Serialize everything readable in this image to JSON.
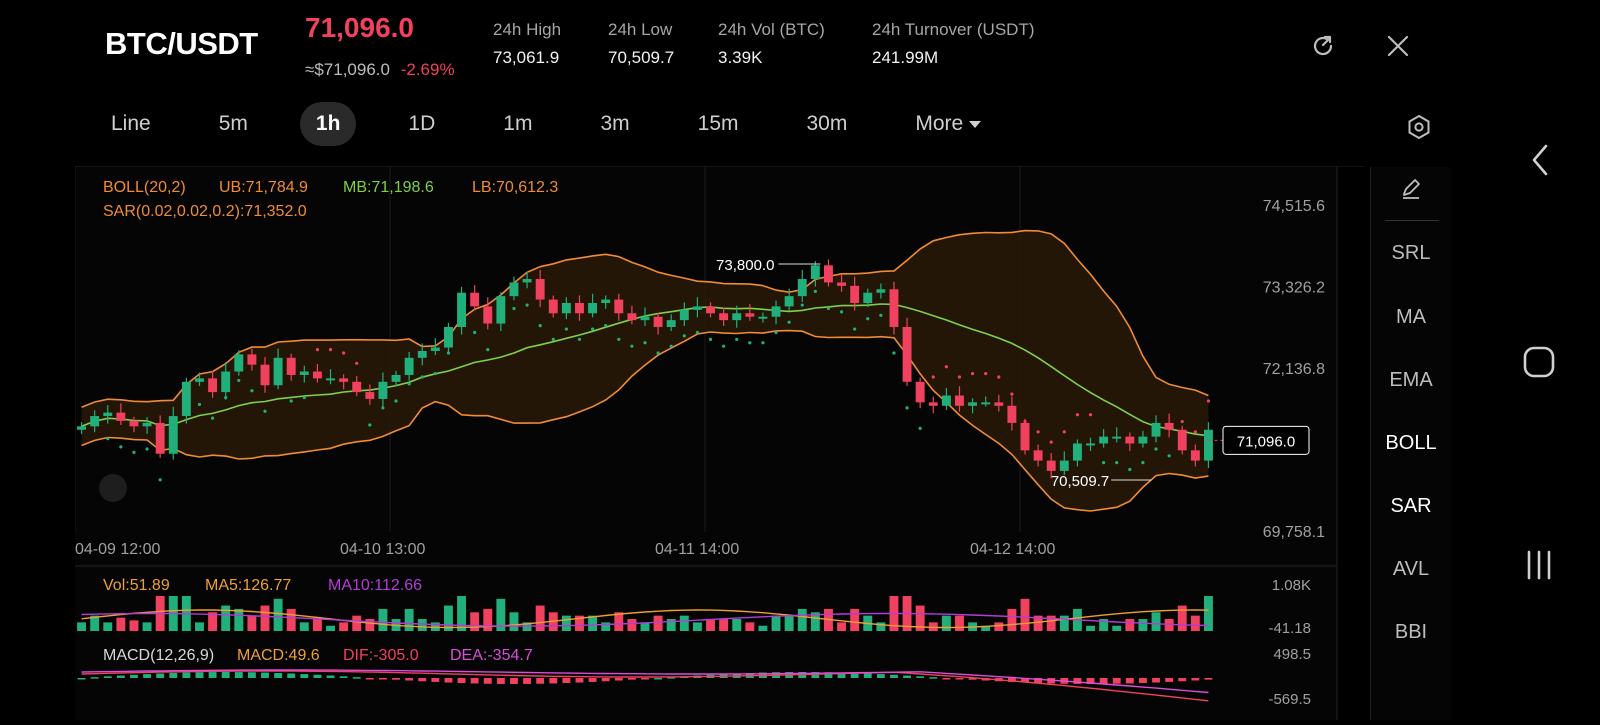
{
  "header": {
    "pair": "BTC/USDT",
    "last_price": "71,096.0",
    "usd_approx": "≈$71,096.0",
    "change_pct": "-2.69%",
    "stats": [
      {
        "label": "24h   High",
        "value": "73,061.9"
      },
      {
        "label": "24h   Low",
        "value": "70,509.7"
      },
      {
        "label": "24h   Vol (BTC)",
        "value": "3.39K"
      },
      {
        "label": "24h   Turnover (USDT)",
        "value": "241.99M"
      }
    ]
  },
  "intervals": [
    "Line",
    "5m",
    "1h",
    "1D",
    "1m",
    "3m",
    "15m",
    "30m"
  ],
  "active_interval": "1h",
  "more_label": "More",
  "indicator_panel": [
    "SRL",
    "MA",
    "EMA",
    "BOLL",
    "SAR",
    "AVL",
    "BBI"
  ],
  "active_indicators": [
    "BOLL",
    "SAR"
  ],
  "colors": {
    "up": "#21b07b",
    "down": "#f0415e",
    "boll_band": "#f08c35",
    "boll_mid": "#7fd14a",
    "sar": "#f0415e",
    "ma5": "#f0a030",
    "ma10": "#b43cd8"
  },
  "chart_data": {
    "type": "candlestick",
    "legend_boll": {
      "name": "BOLL(20,2)",
      "ub": "UB:71,784.9",
      "mb": "MB:71,198.6",
      "lb": "LB:70,612.3"
    },
    "legend_sar": "SAR(0.02,0.02,0.2):71,352.0",
    "y_ticks": [
      "74,515.6",
      "73,326.2",
      "72,136.8",
      "69,758.1"
    ],
    "ylim": [
      69758.1,
      74515.6
    ],
    "x_ticks": [
      "04-09 12:00",
      "04-10 13:00",
      "04-11 14:00",
      "04-12 14:00"
    ],
    "annotation_high": "73,800.0",
    "annotation_low": "70,509.7",
    "current_price_label": "71,096.0",
    "volume": {
      "legend_vol": "Vol:51.89",
      "legend_ma5": "MA5:126.77",
      "legend_ma10": "MA10:112.66",
      "y_top": "1.08K",
      "y_bottom": "-41.18"
    },
    "macd": {
      "legend_name": "MACD(12,26,9)",
      "legend_macd": "MACD:49.6",
      "legend_dif": "DIF:-305.0",
      "legend_dea": "DEA:-354.7",
      "y_top": "498.5",
      "y_bottom": "-569.5"
    },
    "closes": [
      71300,
      71450,
      71500,
      71380,
      71300,
      71350,
      70900,
      71450,
      71950,
      72000,
      71800,
      72100,
      72350,
      72200,
      71900,
      72300,
      72050,
      72100,
      72000,
      72000,
      71950,
      71800,
      71700,
      71950,
      72050,
      72300,
      72400,
      72450,
      72750,
      73250,
      73050,
      72800,
      73200,
      73400,
      73450,
      73150,
      72950,
      73100,
      72950,
      73100,
      73150,
      72950,
      72850,
      72900,
      72750,
      72850,
      73000,
      73050,
      72950,
      72850,
      72950,
      72900,
      72900,
      73050,
      73200,
      73450,
      73650,
      73400,
      73350,
      73100,
      73250,
      73300,
      72750,
      71950,
      71650,
      71600,
      71750,
      71600,
      71650,
      71650,
      71600,
      71350,
      70950,
      70800,
      70650,
      70800,
      71050,
      71050,
      71150,
      71150,
      71050,
      71150,
      71350,
      71250,
      70950,
      70800,
      71250
    ]
  }
}
